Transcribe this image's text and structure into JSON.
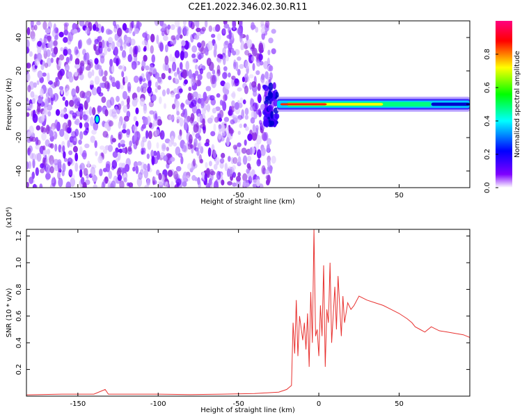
{
  "figure": {
    "title": "C2E1.2022.346.02.30.R11"
  },
  "chart_data": [
    {
      "type": "heatmap",
      "title": "C2E1.2022.346.02.30.R11",
      "xlabel": "Height of straight line (km)",
      "ylabel": "Frequency (Hz)",
      "xlim": [
        -182,
        94
      ],
      "ylim": [
        -50,
        50
      ],
      "x_ticks": [
        -150,
        -100,
        -50,
        0,
        50
      ],
      "y_ticks": [
        -40,
        -20,
        0,
        20,
        40
      ],
      "colorbar": {
        "label": "Normalized spectral amplitude",
        "range": [
          0,
          1
        ],
        "ticks": [
          "0.0",
          "0.2",
          "0.4",
          "0.6",
          "0.8"
        ],
        "colormap": [
          "#ffffff",
          "#7f00ff",
          "#0000ff",
          "#00ffff",
          "#00ff00",
          "#ffff00",
          "#ff0000",
          "#ff0080"
        ]
      },
      "features": {
        "noise_region_x": [
          -182,
          -28
        ],
        "signal_band_center_hz": 0,
        "signal_onset_x": -28,
        "peak_amplitude_x": [
          -24,
          5
        ]
      },
      "grid": false
    },
    {
      "type": "line",
      "xlabel": "Height of straight line (km)",
      "ylabel": "SNR (10 * v/v)",
      "y_multiplier": "(x10⁴)",
      "xlim": [
        -182,
        94
      ],
      "ylim": [
        0,
        1.25
      ],
      "x_ticks": [
        -150,
        -100,
        -50,
        0,
        50
      ],
      "y_ticks": [
        "0.2",
        "0.4",
        "0.6",
        "0.8",
        "1.0",
        "1.2"
      ],
      "color": "#e8312f",
      "series": [
        {
          "x": [
            -182,
            -160,
            -140,
            -133,
            -131,
            -120,
            -100,
            -80,
            -60,
            -40,
            -25,
            -20,
            -17,
            -16,
            -15,
            -14,
            -13,
            -12,
            -10,
            -9,
            -8,
            -7,
            -6,
            -5,
            -4,
            -3,
            -2,
            -1,
            0,
            1,
            2,
            3,
            4,
            5,
            6,
            7,
            8,
            10,
            11,
            12,
            14,
            15,
            16,
            18,
            20,
            22,
            25,
            30,
            35,
            40,
            45,
            50,
            55,
            58,
            60,
            63,
            66,
            70,
            75,
            80,
            85,
            90,
            94
          ],
          "y": [
            0.01,
            0.015,
            0.015,
            0.05,
            0.015,
            0.015,
            0.015,
            0.012,
            0.015,
            0.02,
            0.03,
            0.05,
            0.08,
            0.55,
            0.32,
            0.72,
            0.3,
            0.6,
            0.42,
            0.55,
            0.35,
            0.62,
            0.22,
            0.78,
            0.4,
            1.25,
            0.45,
            0.5,
            0.3,
            0.68,
            0.45,
            0.98,
            0.22,
            0.65,
            0.55,
            1.0,
            0.4,
            0.82,
            0.5,
            0.9,
            0.45,
            0.75,
            0.55,
            0.7,
            0.65,
            0.68,
            0.75,
            0.72,
            0.7,
            0.68,
            0.65,
            0.62,
            0.58,
            0.55,
            0.52,
            0.5,
            0.48,
            0.52,
            0.49,
            0.48,
            0.47,
            0.46,
            0.44
          ]
        }
      ],
      "grid": false
    }
  ]
}
